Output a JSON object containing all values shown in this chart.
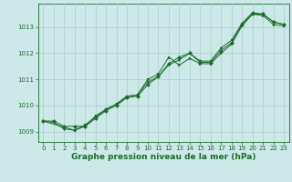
{
  "bg_color": "#cce8e8",
  "grid_color": "#aacccc",
  "line_color": "#1a6b2a",
  "marker_color": "#1a6b2a",
  "xlabel": "Graphe pression niveau de la mer (hPa)",
  "xlabel_fontsize": 6.5,
  "tick_fontsize": 5.0,
  "xlim": [
    -0.5,
    23.5
  ],
  "ylim": [
    1008.6,
    1013.9
  ],
  "yticks": [
    1009,
    1010,
    1011,
    1012,
    1013
  ],
  "xticks": [
    0,
    1,
    2,
    3,
    4,
    5,
    6,
    7,
    8,
    9,
    10,
    11,
    12,
    13,
    14,
    15,
    16,
    17,
    18,
    19,
    20,
    21,
    22,
    23
  ],
  "series1_x": [
    0,
    1,
    2,
    3,
    4,
    5,
    6,
    7,
    8,
    9,
    10,
    11,
    12,
    13,
    14,
    15,
    16,
    17,
    18,
    19,
    20,
    21,
    22,
    23
  ],
  "series1_y": [
    1009.4,
    1009.4,
    1009.2,
    1009.2,
    1009.2,
    1009.5,
    1009.8,
    1010.0,
    1010.3,
    1010.35,
    1010.8,
    1011.1,
    1011.6,
    1011.85,
    1012.0,
    1011.65,
    1011.65,
    1012.1,
    1012.4,
    1013.1,
    1013.5,
    1013.5,
    1013.2,
    1013.1
  ],
  "series2_x": [
    0,
    1,
    2,
    3,
    4,
    5,
    6,
    7,
    8,
    9,
    10,
    11,
    12,
    13,
    14,
    15,
    16,
    17,
    18,
    19,
    20,
    21,
    22,
    23
  ],
  "series2_y": [
    1009.4,
    1009.35,
    1009.1,
    1009.05,
    1009.25,
    1009.55,
    1009.85,
    1010.05,
    1010.35,
    1010.4,
    1010.9,
    1011.1,
    1011.55,
    1011.75,
    1012.0,
    1011.7,
    1011.7,
    1012.2,
    1012.5,
    1013.15,
    1013.55,
    1013.5,
    1013.2,
    1013.1
  ],
  "series3_x": [
    0,
    3,
    4,
    5,
    6,
    7,
    8,
    9,
    10,
    11,
    12,
    13,
    14,
    15,
    16,
    17,
    18,
    19,
    20,
    21,
    22,
    23
  ],
  "series3_y": [
    1009.4,
    1009.05,
    1009.2,
    1009.6,
    1009.85,
    1010.05,
    1010.35,
    1010.4,
    1011.0,
    1011.2,
    1011.85,
    1011.55,
    1011.8,
    1011.6,
    1011.6,
    1012.0,
    1012.35,
    1013.05,
    1013.5,
    1013.45,
    1013.1,
    1013.05
  ]
}
